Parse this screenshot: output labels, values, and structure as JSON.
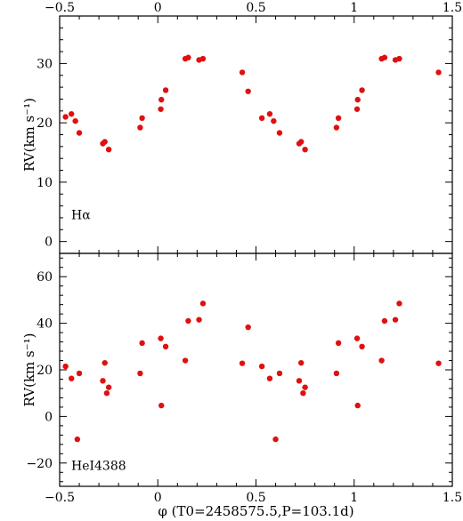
{
  "chart_data": [
    {
      "type": "scatter",
      "title": "",
      "panel_label": "Hα",
      "xlabel": "φ (T0=2458575.5,P=103.1d)",
      "ylabel": "RV(km s⁻¹)",
      "xlim": [
        -0.5,
        1.5
      ],
      "ylim": [
        -2,
        38
      ],
      "xticks": [
        -0.5,
        0,
        0.5,
        1,
        1.5
      ],
      "xtick_labels": [
        "−0.5",
        "0",
        "0.5",
        "1",
        "1.5"
      ],
      "yticks": [
        0,
        10,
        20,
        30
      ],
      "ytick_labels": [
        "0",
        "10",
        "20",
        "30"
      ],
      "color": "#e01010",
      "points": [
        [
          -0.47,
          21.0
        ],
        [
          -0.44,
          21.5
        ],
        [
          -0.42,
          20.3
        ],
        [
          -0.4,
          18.3
        ],
        [
          -0.28,
          16.5
        ],
        [
          -0.27,
          16.8
        ],
        [
          -0.25,
          15.5
        ],
        [
          -0.09,
          19.2
        ],
        [
          -0.08,
          20.8
        ],
        [
          0.015,
          22.3
        ],
        [
          0.018,
          23.9
        ],
        [
          0.04,
          25.5
        ],
        [
          0.14,
          30.8
        ],
        [
          0.155,
          31.0
        ],
        [
          0.21,
          30.6
        ],
        [
          0.23,
          30.8
        ],
        [
          0.43,
          28.5
        ],
        [
          0.46,
          25.3
        ],
        [
          0.53,
          20.8
        ],
        [
          0.57,
          21.5
        ],
        [
          0.59,
          20.3
        ],
        [
          0.62,
          18.3
        ],
        [
          0.72,
          16.5
        ],
        [
          0.73,
          16.8
        ],
        [
          0.75,
          15.5
        ],
        [
          0.91,
          19.2
        ],
        [
          0.92,
          20.8
        ],
        [
          1.015,
          22.3
        ],
        [
          1.018,
          23.9
        ],
        [
          1.04,
          25.5
        ],
        [
          1.14,
          30.8
        ],
        [
          1.155,
          31.0
        ],
        [
          1.21,
          30.6
        ],
        [
          1.23,
          30.8
        ],
        [
          1.43,
          28.5
        ]
      ]
    },
    {
      "type": "scatter",
      "title": "",
      "panel_label": "HeI4388",
      "xlabel": "φ (T0=2458575.5,P=103.1d)",
      "ylabel": "RV(km s⁻¹)",
      "xlim": [
        -0.5,
        1.5
      ],
      "ylim": [
        -30,
        70
      ],
      "xticks": [
        -0.5,
        0,
        0.5,
        1,
        1.5
      ],
      "xtick_labels": [
        "−0.5",
        "0",
        "0.5",
        "1",
        "1.5"
      ],
      "yticks": [
        -20,
        0,
        20,
        40,
        60
      ],
      "ytick_labels": [
        "−20",
        "0",
        "20",
        "40",
        "60"
      ],
      "color": "#e01010",
      "points": [
        [
          -0.47,
          21.5
        ],
        [
          -0.44,
          16.3
        ],
        [
          -0.41,
          -9.8
        ],
        [
          -0.4,
          18.5
        ],
        [
          -0.28,
          15.3
        ],
        [
          -0.27,
          23.0
        ],
        [
          -0.26,
          10.0
        ],
        [
          -0.25,
          12.5
        ],
        [
          -0.09,
          18.5
        ],
        [
          -0.08,
          31.5
        ],
        [
          0.015,
          33.5
        ],
        [
          0.018,
          4.7
        ],
        [
          0.04,
          30.0
        ],
        [
          0.14,
          24.0
        ],
        [
          0.155,
          41.0
        ],
        [
          0.21,
          41.5
        ],
        [
          0.23,
          48.5
        ],
        [
          0.43,
          22.8
        ],
        [
          0.46,
          38.3
        ],
        [
          0.53,
          21.5
        ],
        [
          0.57,
          16.3
        ],
        [
          0.6,
          -9.8
        ],
        [
          0.62,
          18.5
        ],
        [
          0.72,
          15.3
        ],
        [
          0.73,
          23.0
        ],
        [
          0.74,
          10.0
        ],
        [
          0.75,
          12.5
        ],
        [
          0.91,
          18.5
        ],
        [
          0.92,
          31.5
        ],
        [
          1.015,
          33.5
        ],
        [
          1.018,
          4.7
        ],
        [
          1.04,
          30.0
        ],
        [
          1.14,
          24.0
        ],
        [
          1.155,
          41.0
        ],
        [
          1.21,
          41.5
        ],
        [
          1.23,
          48.5
        ],
        [
          1.43,
          22.8
        ]
      ]
    }
  ]
}
